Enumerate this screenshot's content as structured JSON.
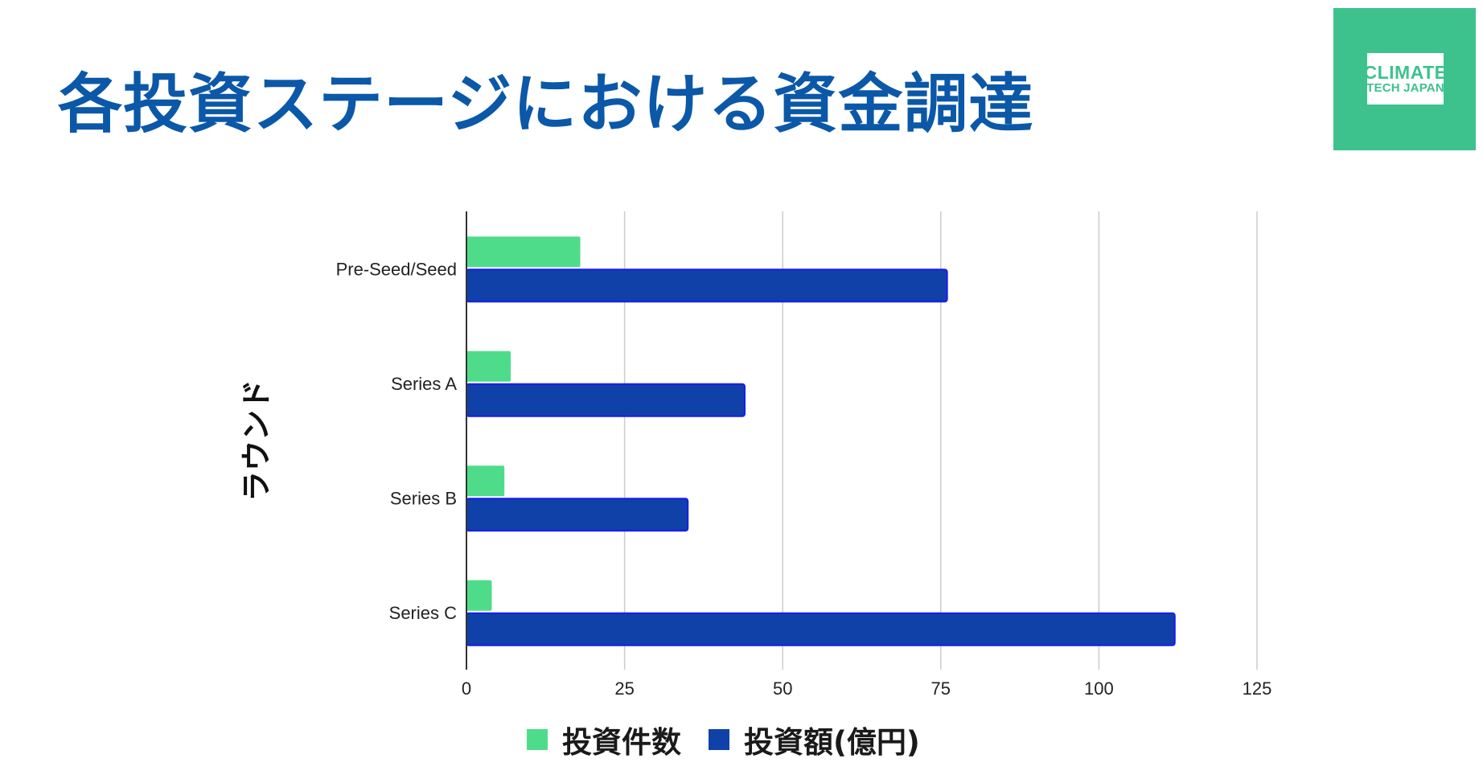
{
  "slide": {
    "title": "各投資ステージにおける資金調達",
    "title_color": "#0b58a8",
    "logo": {
      "line1": "CLIMATE",
      "line2": "TECH JAPAN",
      "bg_color": "#3dc28e",
      "text_color": "#3dc28e"
    }
  },
  "chart_data": {
    "type": "bar",
    "orientation": "horizontal",
    "title": "",
    "xlabel": "",
    "ylabel": "ラウンド",
    "categories": [
      "Pre-Seed/Seed",
      "Series A",
      "Series B",
      "Series C"
    ],
    "series": [
      {
        "name": "投資件数",
        "values": [
          18,
          7,
          6,
          4
        ],
        "color": "#4fdc8a"
      },
      {
        "name": "投資額(億円)",
        "values": [
          76,
          44,
          35,
          112
        ],
        "color": "#0f41a8",
        "outline": "#1b1bef"
      }
    ],
    "xlim": [
      0,
      125
    ],
    "xticks": [
      0,
      25,
      50,
      75,
      100,
      125
    ],
    "x_tick_labels": [
      "0",
      "25",
      "50",
      "75",
      "100",
      "125"
    ],
    "grid": "vertical",
    "legend_position": "bottom"
  }
}
